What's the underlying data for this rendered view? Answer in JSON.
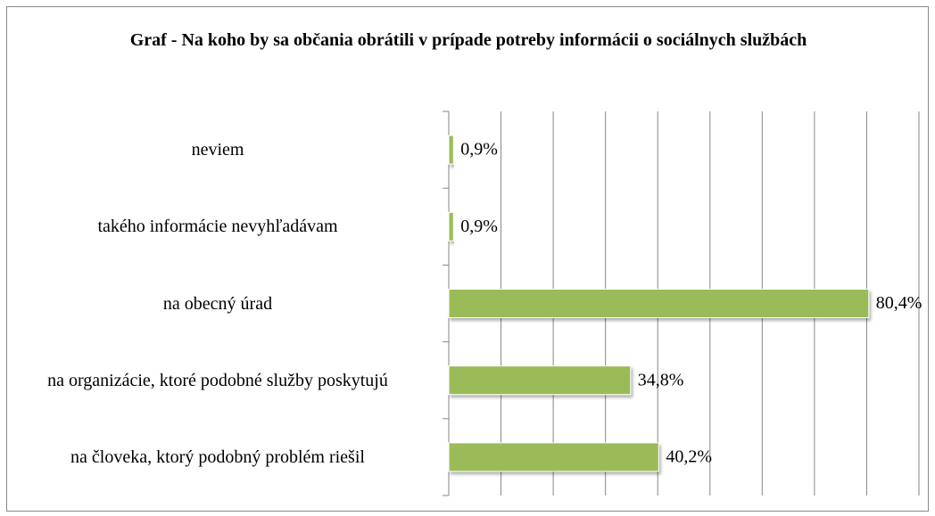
{
  "chart_data": {
    "type": "bar",
    "orientation": "horizontal",
    "title": "Graf - Na koho by sa občania obrátili v prípade potreby informácii o sociálnych službách",
    "categories": [
      "neviem",
      "takého informácie nevyhľadávam",
      "na obecný úrad",
      "na organizácie, ktoré podobné služby poskytujú",
      "na človeka, ktorý podobný problém riešil"
    ],
    "values": [
      0.9,
      0.9,
      80.4,
      34.8,
      40.2
    ],
    "value_labels": [
      "0,9%",
      "0,9%",
      "80,4%",
      "34,8%",
      "40,2%"
    ],
    "color": "#9bbb59",
    "xlim": [
      0,
      90
    ],
    "xticks": [
      0,
      10,
      20,
      30,
      40,
      50,
      60,
      70,
      80,
      90
    ],
    "grid": true
  }
}
